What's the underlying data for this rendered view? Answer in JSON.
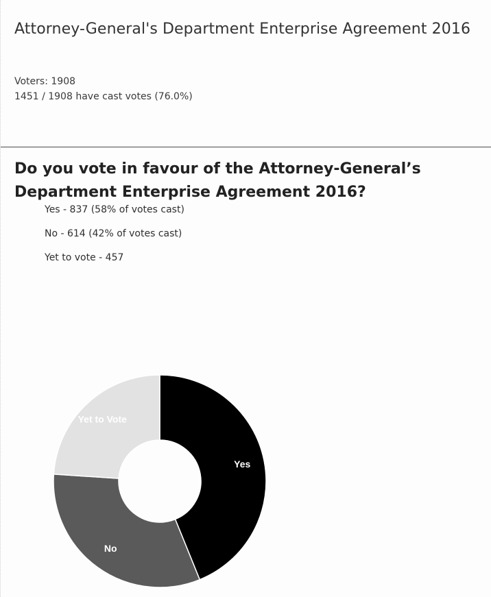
{
  "header": {
    "title": "Attorney-General's Department Enterprise Agreement 2016",
    "voters": "Voters: 1908",
    "cast": "1451 / 1908 have cast votes (76.0%)"
  },
  "question": {
    "text": "Do you vote in favour of the Attorney-General’s Department Enterprise Agreement 2016?",
    "results": [
      "Yes - 837 (58% of votes cast)",
      "No - 614 (42% of votes cast)",
      "Yet to vote - 457"
    ]
  },
  "chart_data": {
    "type": "pie",
    "style": "donut",
    "slices": [
      {
        "label": "Yes",
        "value": 837,
        "color": "#000000",
        "label_color": "#ffffff"
      },
      {
        "label": "No",
        "value": 614,
        "color": "#5a5a5a",
        "label_color": "#ffffff"
      },
      {
        "label": "Yet to Vote",
        "value": 457,
        "color": "#e2e2e2",
        "label_color": "#ffffff"
      }
    ]
  }
}
